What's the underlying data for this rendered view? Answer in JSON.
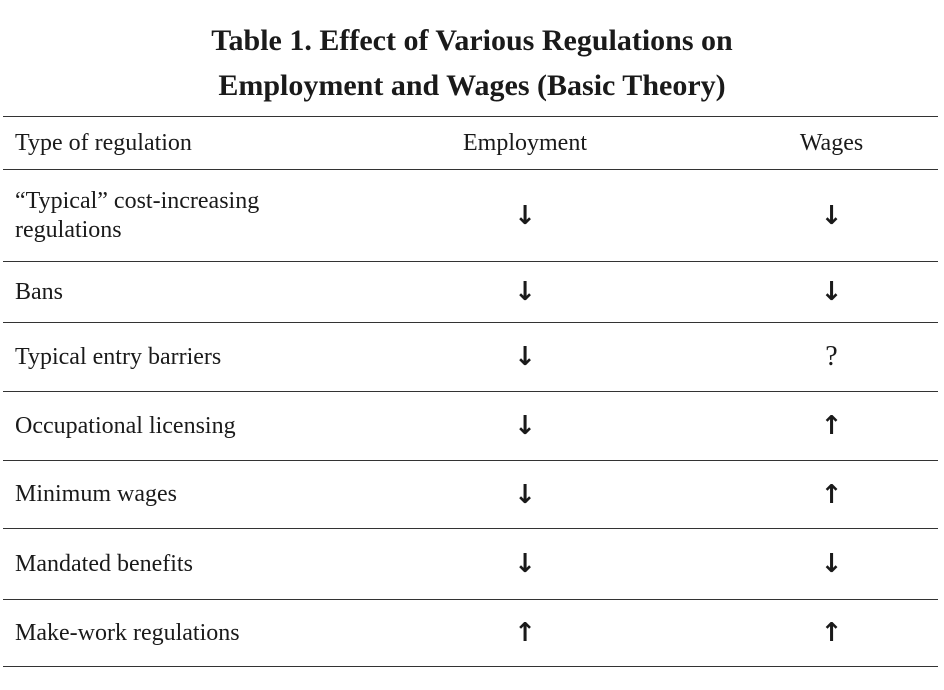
{
  "title": {
    "line1": "Table 1. Effect of Various Regulations on",
    "line2": "Employment and Wages (Basic Theory)"
  },
  "columns": [
    "Type of regulation",
    "Employment",
    "Wages"
  ],
  "rows": [
    {
      "type_line1": "“Typical” cost-increasing",
      "type_line2": "regulations",
      "employment": "↓",
      "wages": "↓"
    },
    {
      "type": "Bans",
      "employment": "↓",
      "wages": "↓"
    },
    {
      "type": "Typical entry barriers",
      "employment": "↓",
      "wages": "?"
    },
    {
      "type": "Occupational licensing",
      "employment": "↓",
      "wages": "↑"
    },
    {
      "type": "Minimum wages",
      "employment": "↓",
      "wages": "↑"
    },
    {
      "type": "Mandated benefits",
      "employment": "↓",
      "wages": "↓"
    },
    {
      "type": "Make-work regulations",
      "employment": "↑",
      "wages": "↑"
    }
  ]
}
